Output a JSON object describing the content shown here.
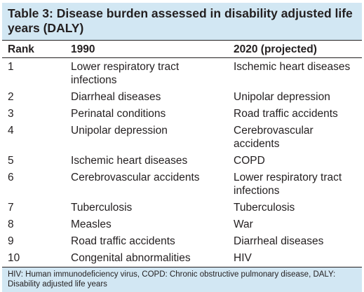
{
  "table": {
    "title": "Table 3: Disease burden assessed in disability adjusted life years (DALY)",
    "headers": [
      "Rank",
      "1990",
      "2020 (projected)"
    ],
    "rows": [
      [
        "1",
        "Lower respiratory tract infections",
        "Ischemic heart diseases"
      ],
      [
        "2",
        "Diarrheal diseases",
        "Unipolar depression"
      ],
      [
        "3",
        "Perinatal conditions",
        "Road traffic accidents"
      ],
      [
        "4",
        "Unipolar depression",
        "Cerebrovascular accidents"
      ],
      [
        "5",
        "Ischemic heart diseases",
        "COPD"
      ],
      [
        "6",
        "Cerebrovascular accidents",
        "Lower respiratory tract infections"
      ],
      [
        "7",
        "Tuberculosis",
        "Tuberculosis"
      ],
      [
        "8",
        "Measles",
        "War"
      ],
      [
        "9",
        "Road traffic accidents",
        "Diarrheal diseases"
      ],
      [
        "10",
        "Congenital abnormalities",
        "HIV"
      ]
    ],
    "footnote": "HIV: Human immunodeficiency virus, COPD: Chronic obstructive pulmonary disease, DALY: Disability adjusted life years"
  },
  "colors": {
    "title_background": "#d2e7f3",
    "text": "#231f20",
    "rule": "#231f20"
  }
}
